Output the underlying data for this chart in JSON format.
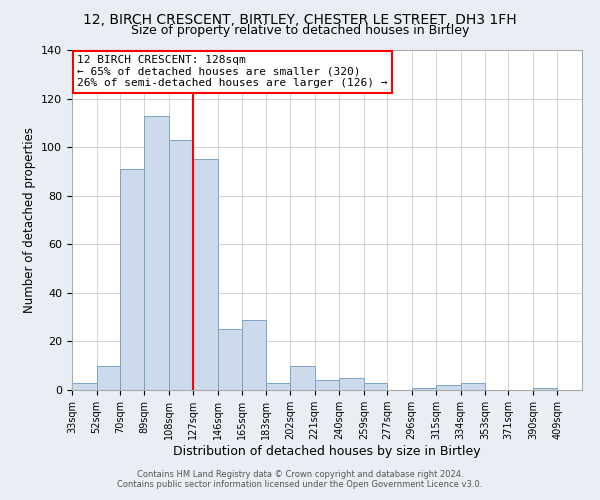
{
  "title": "12, BIRCH CRESCENT, BIRTLEY, CHESTER LE STREET, DH3 1FH",
  "subtitle": "Size of property relative to detached houses in Birtley",
  "xlabel": "Distribution of detached houses by size in Birtley",
  "ylabel": "Number of detached properties",
  "bin_labels": [
    "33sqm",
    "52sqm",
    "70sqm",
    "89sqm",
    "108sqm",
    "127sqm",
    "146sqm",
    "165sqm",
    "183sqm",
    "202sqm",
    "221sqm",
    "240sqm",
    "259sqm",
    "277sqm",
    "296sqm",
    "315sqm",
    "334sqm",
    "353sqm",
    "371sqm",
    "390sqm",
    "409sqm"
  ],
  "bin_edges": [
    33,
    52,
    70,
    89,
    108,
    127,
    146,
    165,
    183,
    202,
    221,
    240,
    259,
    277,
    296,
    315,
    334,
    353,
    371,
    390,
    409
  ],
  "bar_heights": [
    3,
    10,
    91,
    113,
    103,
    95,
    25,
    29,
    3,
    10,
    4,
    5,
    3,
    0,
    1,
    2,
    3,
    0,
    0,
    1,
    0
  ],
  "bar_color": "#ccdaeb",
  "bar_edge_color": "#7ba4c8",
  "vline_x": 127,
  "vline_color": "red",
  "annotation_title": "12 BIRCH CRESCENT: 128sqm",
  "annotation_line1": "← 65% of detached houses are smaller (320)",
  "annotation_line2": "26% of semi-detached houses are larger (126) →",
  "annotation_box_color": "white",
  "annotation_box_edge": "red",
  "ylim": [
    0,
    140
  ],
  "yticks": [
    0,
    20,
    40,
    60,
    80,
    100,
    120,
    140
  ],
  "grid_color": "#cccccc",
  "fig_background_color": "#e8eef4",
  "ax_background_color": "#ffffff",
  "footer1": "Contains HM Land Registry data © Crown copyright and database right 2024.",
  "footer2": "Contains public sector information licensed under the Open Government Licence v3.0.",
  "title_fontsize": 10,
  "subtitle_fontsize": 9
}
